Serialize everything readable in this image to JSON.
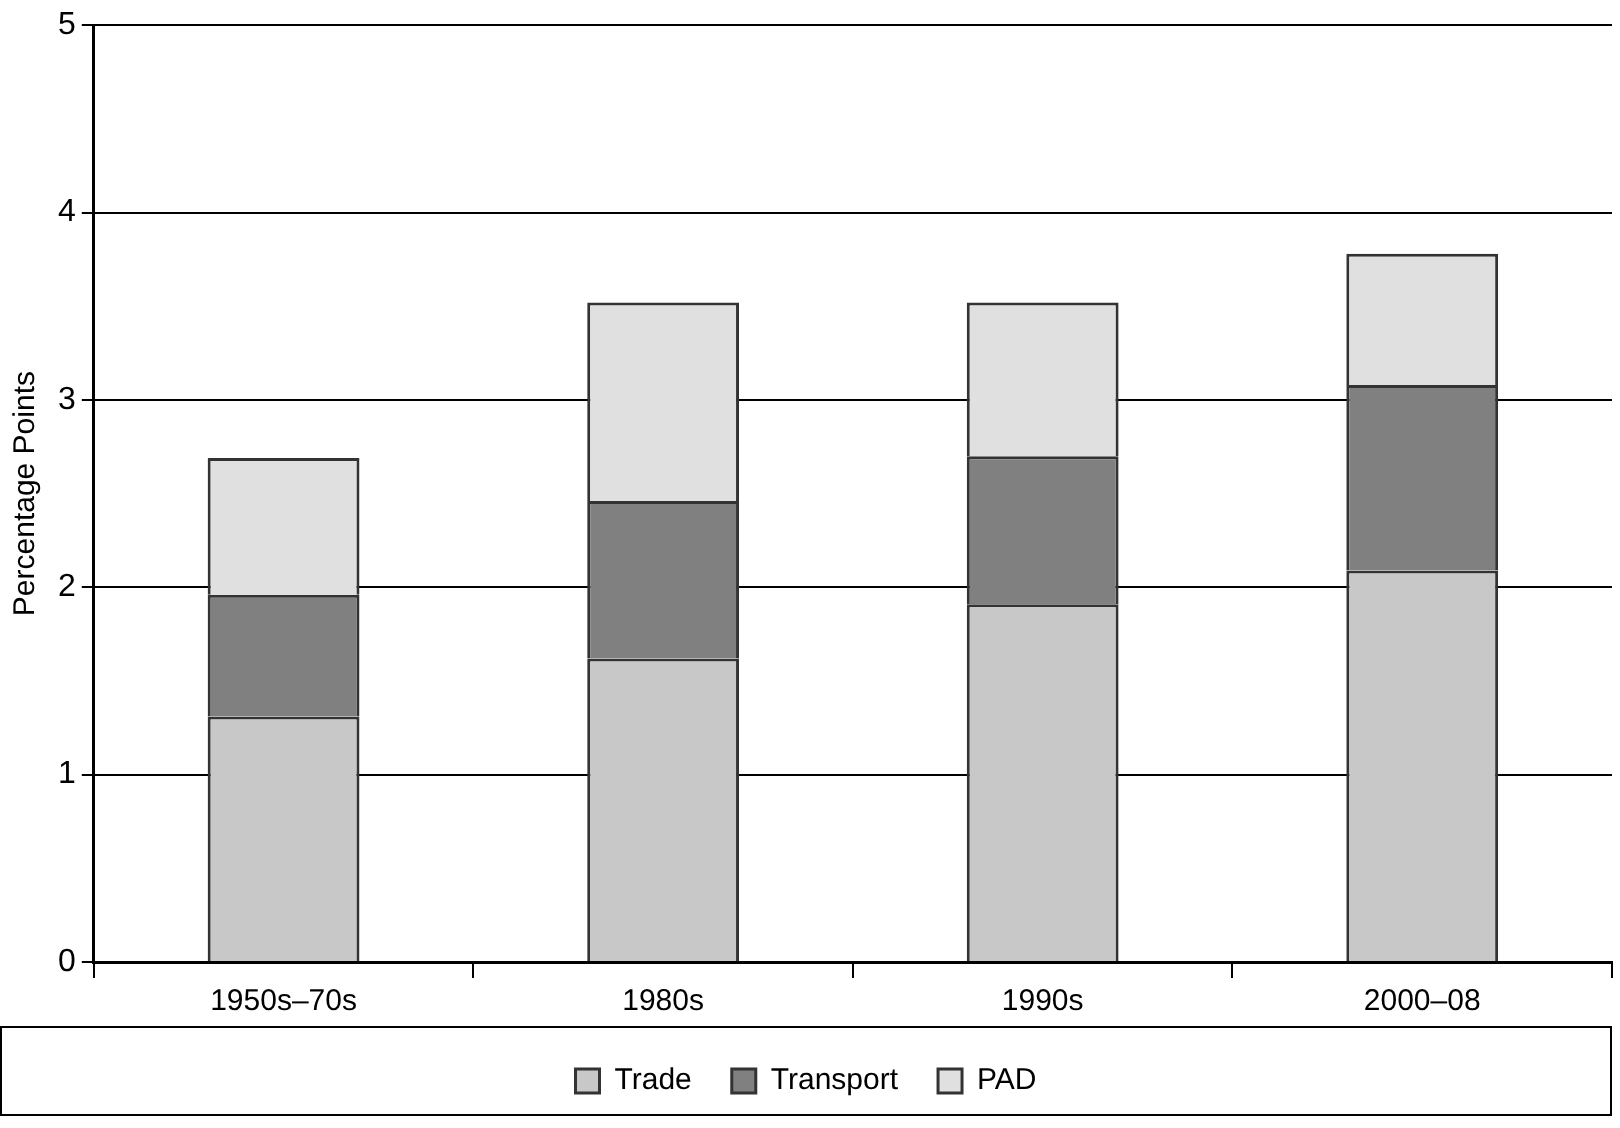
{
  "chart_data": {
    "type": "bar",
    "ylabel": "Percentage Points",
    "categories": [
      "1950s–70s",
      "1980s",
      "1990s",
      "2000–08"
    ],
    "series": [
      {
        "name": "Trade",
        "color": "#c8c8c8",
        "values": [
          1.31,
          1.62,
          1.91,
          2.09
        ]
      },
      {
        "name": "Transport",
        "color": "#808080",
        "values": [
          0.65,
          0.84,
          0.79,
          0.99
        ]
      },
      {
        "name": "PAD",
        "color": "#e0e0e0",
        "values": [
          0.73,
          1.06,
          0.82,
          0.7
        ]
      }
    ],
    "stacked": true,
    "ylim": [
      0,
      5
    ],
    "yticks": [
      0,
      1,
      2,
      3,
      4,
      5
    ],
    "grid": "y",
    "legend": "bottom"
  }
}
